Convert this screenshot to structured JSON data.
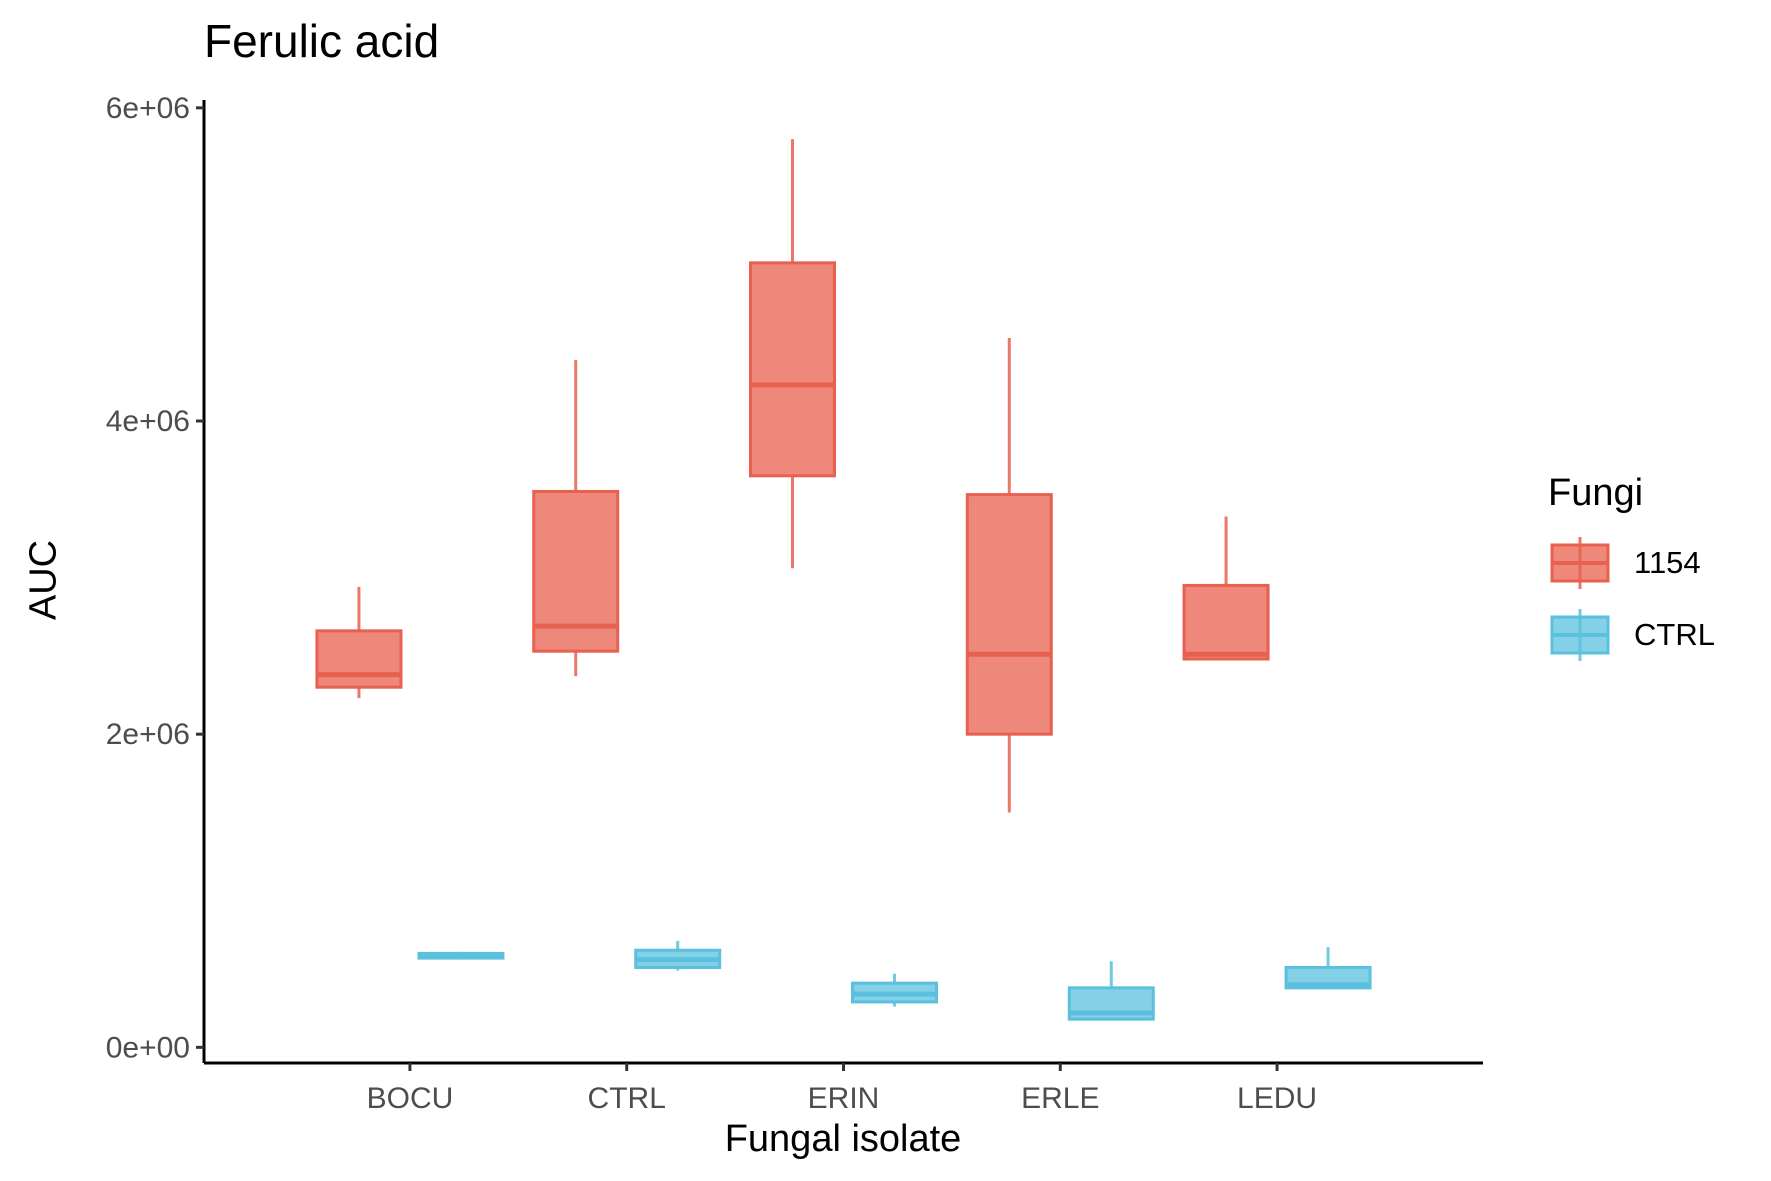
{
  "chart_data": {
    "type": "boxplot",
    "title": "Ferulic acid",
    "xlabel": "Fungal isolate",
    "ylabel": "AUC",
    "categories": [
      "BOCU",
      "CTRL",
      "ERIN",
      "ERLE",
      "LEDU"
    ],
    "y_ticks": [
      0,
      2000000,
      4000000,
      6000000
    ],
    "y_tick_labels": [
      "0e+00",
      "2e+06",
      "4e+06",
      "6e+06"
    ],
    "ylim": [
      -100000,
      6050000
    ],
    "grid": false,
    "legend": {
      "title": "Fungi",
      "position": "right",
      "entries": [
        "1154",
        "CTRL"
      ]
    },
    "series": [
      {
        "name": "1154",
        "color": "#e8604f",
        "boxes": [
          {
            "category": "BOCU",
            "whisker_low": 2230000,
            "q1": 2300000,
            "median": 2380000,
            "q3": 2660000,
            "whisker_high": 2940000
          },
          {
            "category": "CTRL",
            "whisker_low": 2370000,
            "q1": 2530000,
            "median": 2690000,
            "q3": 3550000,
            "whisker_high": 4390000
          },
          {
            "category": "ERIN",
            "whisker_low": 3060000,
            "q1": 3650000,
            "median": 4230000,
            "q3": 5010000,
            "whisker_high": 5800000
          },
          {
            "category": "ERLE",
            "whisker_low": 1500000,
            "q1": 2000000,
            "median": 2510000,
            "q3": 3530000,
            "whisker_high": 4530000
          },
          {
            "category": "LEDU",
            "whisker_low": 2480000,
            "q1": 2480000,
            "median": 2510000,
            "q3": 2950000,
            "whisker_high": 3390000
          }
        ]
      },
      {
        "name": "CTRL",
        "color": "#5bc0de",
        "boxes": [
          {
            "category": "BOCU",
            "whisker_low": 560000,
            "q1": 570000,
            "median": 590000,
            "q3": 600000,
            "whisker_high": 610000
          },
          {
            "category": "CTRL",
            "whisker_low": 490000,
            "q1": 510000,
            "median": 560000,
            "q3": 620000,
            "whisker_high": 680000
          },
          {
            "category": "ERIN",
            "whisker_low": 260000,
            "q1": 290000,
            "median": 340000,
            "q3": 410000,
            "whisker_high": 470000
          },
          {
            "category": "ERLE",
            "whisker_low": 180000,
            "q1": 180000,
            "median": 220000,
            "q3": 380000,
            "whisker_high": 550000
          },
          {
            "category": "LEDU",
            "whisker_low": 370000,
            "q1": 380000,
            "median": 400000,
            "q3": 510000,
            "whisker_high": 640000
          }
        ]
      }
    ]
  }
}
